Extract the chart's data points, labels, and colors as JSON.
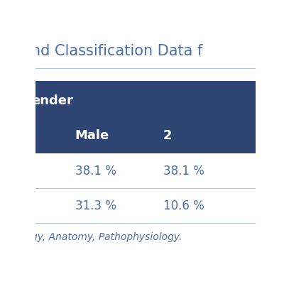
{
  "title": "nd Classification Data f",
  "header_bg": "#2e4472",
  "header_text_color": "#ffffff",
  "data_text_color": "#4a6fa5",
  "title_text_color": "#4a6fa5",
  "footer_text": "gy, Anatomy, Pathophysiology.",
  "col1_header": "ender",
  "col2_subheader": "Male",
  "col3_subheader": "2",
  "rows": [
    [
      "38.1 %",
      "38.1 %"
    ],
    [
      "31.3 %",
      "10.6 %"
    ]
  ],
  "fig_bg": "#ffffff",
  "border_color": "#b0c4d8",
  "title_fontsize": 15,
  "header1_fontsize": 13,
  "header2_fontsize": 13,
  "data_fontsize": 12,
  "footer_fontsize": 10
}
